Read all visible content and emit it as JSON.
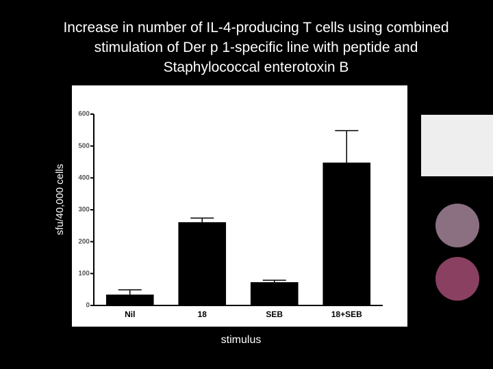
{
  "chart_data": {
    "type": "bar",
    "title": "Increase in number of IL-4-producing T cells using combined stimulation of Der p 1-specific line with peptide and Staphylococcal enterotoxin B",
    "x_label": "stimulus",
    "y_label": "sfu/40,000 cells",
    "categories": [
      "Nil",
      "18",
      "SEB",
      "18+SEB"
    ],
    "values": [
      34,
      261,
      73,
      448
    ],
    "errors": [
      15,
      13,
      6,
      100
    ],
    "color": "#000000",
    "ylim": [
      0,
      600
    ],
    "yticks": [
      0,
      100,
      200,
      300,
      400,
      500,
      600
    ],
    "grid": false
  }
}
